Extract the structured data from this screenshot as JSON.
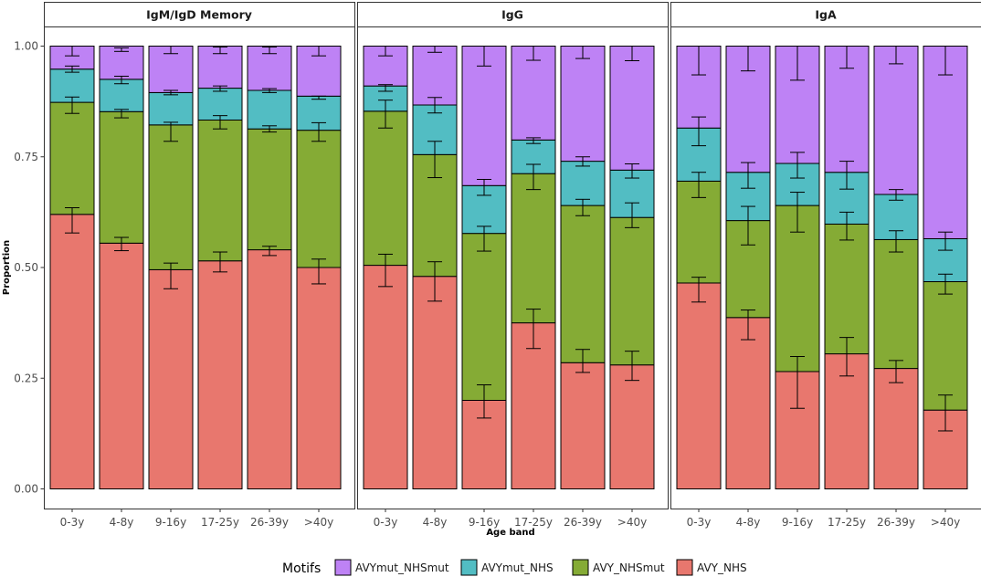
{
  "chart_data": {
    "type": "bar",
    "stacked": true,
    "error_bars": true,
    "ylabel": "Proportion",
    "xlabel": "Age band",
    "ylim": [
      0,
      1
    ],
    "yticks": [
      0.0,
      0.25,
      0.5,
      0.75,
      1.0
    ],
    "ytick_labels": [
      "0.00",
      "0.25",
      "0.50",
      "0.75",
      "1.00"
    ],
    "categories": [
      "0-3y",
      "4-8y",
      "9-16y",
      "17-25y",
      "26-39y",
      ">40y"
    ],
    "legend": {
      "title": "Motifs",
      "position": "bottom",
      "entries": [
        "AVYmut_NHSmut",
        "AVYmut_NHS",
        "AVY_NHSmut",
        "AVY_NHS"
      ]
    },
    "colors": {
      "AVY_NHS": "#E8776E",
      "AVY_NHSmut": "#85AB35",
      "AVYmut_NHS": "#52BDC3",
      "AVYmut_NHSmut": "#BE82F5"
    },
    "stack_order": [
      "AVY_NHS",
      "AVY_NHSmut",
      "AVYmut_NHS",
      "AVYmut_NHSmut"
    ],
    "panels": [
      {
        "title": "IgM/IgD Memory",
        "cumulative": {
          "AVY_NHS": [
            0.62,
            0.555,
            0.495,
            0.515,
            0.54,
            0.5
          ],
          "AVY_NHSmut": [
            0.873,
            0.852,
            0.822,
            0.833,
            0.813,
            0.81
          ],
          "AVYmut_NHS": [
            0.948,
            0.925,
            0.895,
            0.905,
            0.9,
            0.887
          ]
        },
        "errors": {
          "AVY_NHS": [
            [
              0.578,
              0.635
            ],
            [
              0.538,
              0.568
            ],
            [
              0.452,
              0.51
            ],
            [
              0.49,
              0.535
            ],
            [
              0.527,
              0.548
            ],
            [
              0.463,
              0.519
            ]
          ],
          "AVY_NHSmut": [
            [
              0.848,
              0.885
            ],
            [
              0.838,
              0.857
            ],
            [
              0.785,
              0.828
            ],
            [
              0.813,
              0.843
            ],
            [
              0.806,
              0.82
            ],
            [
              0.785,
              0.827
            ]
          ],
          "AVYmut_NHS": [
            [
              0.941,
              0.955
            ],
            [
              0.915,
              0.932
            ],
            [
              0.89,
              0.9
            ],
            [
              0.898,
              0.91
            ],
            [
              0.895,
              0.904
            ],
            [
              0.88,
              0.887
            ]
          ],
          "AVYmut_NHSmut": [
            [
              0.978,
              1.0
            ],
            [
              0.988,
              0.996
            ],
            [
              0.983,
              1.0
            ],
            [
              0.983,
              0.998
            ],
            [
              0.983,
              0.998
            ],
            [
              0.978,
              1.0
            ]
          ]
        }
      },
      {
        "title": "IgG",
        "cumulative": {
          "AVY_NHS": [
            0.505,
            0.48,
            0.2,
            0.375,
            0.285,
            0.28
          ],
          "AVY_NHSmut": [
            0.853,
            0.755,
            0.577,
            0.712,
            0.64,
            0.613
          ],
          "AVYmut_NHS": [
            0.91,
            0.867,
            0.685,
            0.788,
            0.74,
            0.72
          ]
        },
        "errors": {
          "AVY_NHS": [
            [
              0.457,
              0.53
            ],
            [
              0.424,
              0.513
            ],
            [
              0.16,
              0.235
            ],
            [
              0.317,
              0.406
            ],
            [
              0.263,
              0.315
            ],
            [
              0.245,
              0.311
            ]
          ],
          "AVY_NHSmut": [
            [
              0.815,
              0.878
            ],
            [
              0.703,
              0.785
            ],
            [
              0.537,
              0.593
            ],
            [
              0.676,
              0.733
            ],
            [
              0.617,
              0.654
            ],
            [
              0.59,
              0.646
            ]
          ],
          "AVYmut_NHS": [
            [
              0.898,
              0.913
            ],
            [
              0.849,
              0.884
            ],
            [
              0.663,
              0.699
            ],
            [
              0.78,
              0.793
            ],
            [
              0.729,
              0.75
            ],
            [
              0.702,
              0.734
            ]
          ],
          "AVYmut_NHSmut": [
            [
              0.978,
              1.0
            ],
            [
              0.986,
              1.0
            ],
            [
              0.955,
              1.0
            ],
            [
              0.968,
              1.0
            ],
            [
              0.972,
              1.0
            ],
            [
              0.967,
              1.0
            ]
          ]
        }
      },
      {
        "title": "IgA",
        "cumulative": {
          "AVY_NHS": [
            0.465,
            0.387,
            0.265,
            0.305,
            0.272,
            0.178
          ],
          "AVY_NHSmut": [
            0.695,
            0.606,
            0.64,
            0.598,
            0.563,
            0.468
          ],
          "AVYmut_NHS": [
            0.815,
            0.715,
            0.735,
            0.715,
            0.665,
            0.565
          ]
        },
        "errors": {
          "AVY_NHS": [
            [
              0.422,
              0.478
            ],
            [
              0.337,
              0.404
            ],
            [
              0.182,
              0.299
            ],
            [
              0.255,
              0.342
            ],
            [
              0.24,
              0.29
            ],
            [
              0.131,
              0.212
            ]
          ],
          "AVY_NHSmut": [
            [
              0.658,
              0.715
            ],
            [
              0.551,
              0.638
            ],
            [
              0.58,
              0.67
            ],
            [
              0.562,
              0.625
            ],
            [
              0.535,
              0.583
            ],
            [
              0.44,
              0.485
            ]
          ],
          "AVYmut_NHS": [
            [
              0.775,
              0.84
            ],
            [
              0.679,
              0.737
            ],
            [
              0.702,
              0.76
            ],
            [
              0.677,
              0.74
            ],
            [
              0.652,
              0.676
            ],
            [
              0.539,
              0.58
            ]
          ],
          "AVYmut_NHSmut": [
            [
              0.935,
              1.0
            ],
            [
              0.944,
              1.0
            ],
            [
              0.923,
              1.0
            ],
            [
              0.95,
              1.0
            ],
            [
              0.96,
              1.0
            ],
            [
              0.935,
              1.0
            ]
          ]
        }
      }
    ]
  }
}
